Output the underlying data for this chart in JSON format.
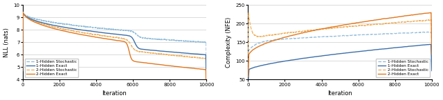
{
  "left": {
    "xlabel": "Iteration",
    "ylabel": "NLL (nats)",
    "xlim": [
      0,
      10000
    ],
    "ylim": [
      4,
      10
    ],
    "yticks": [
      4,
      5,
      6,
      7,
      8,
      9,
      10
    ],
    "xticks": [
      0,
      2000,
      4000,
      6000,
      8000,
      10000
    ]
  },
  "right": {
    "xlabel": "Iteration",
    "ylabel": "Complexity (NFE)",
    "xlim": [
      0,
      10000
    ],
    "ylim": [
      50,
      250
    ],
    "yticks": [
      50,
      100,
      150,
      200,
      250
    ],
    "xticks": [
      0,
      2000,
      4000,
      6000,
      8000,
      10000
    ]
  },
  "colors": {
    "blue_stoch": "#8ab8d8",
    "blue_exact": "#3d6fa8",
    "orange_stoch": "#f0aa50",
    "orange_exact": "#e07820"
  },
  "legend_labels": [
    "1-Hidden Stochastic",
    "1-Hidden Exact",
    "2-Hidden Stochastic",
    "2-Hidden Exact"
  ]
}
